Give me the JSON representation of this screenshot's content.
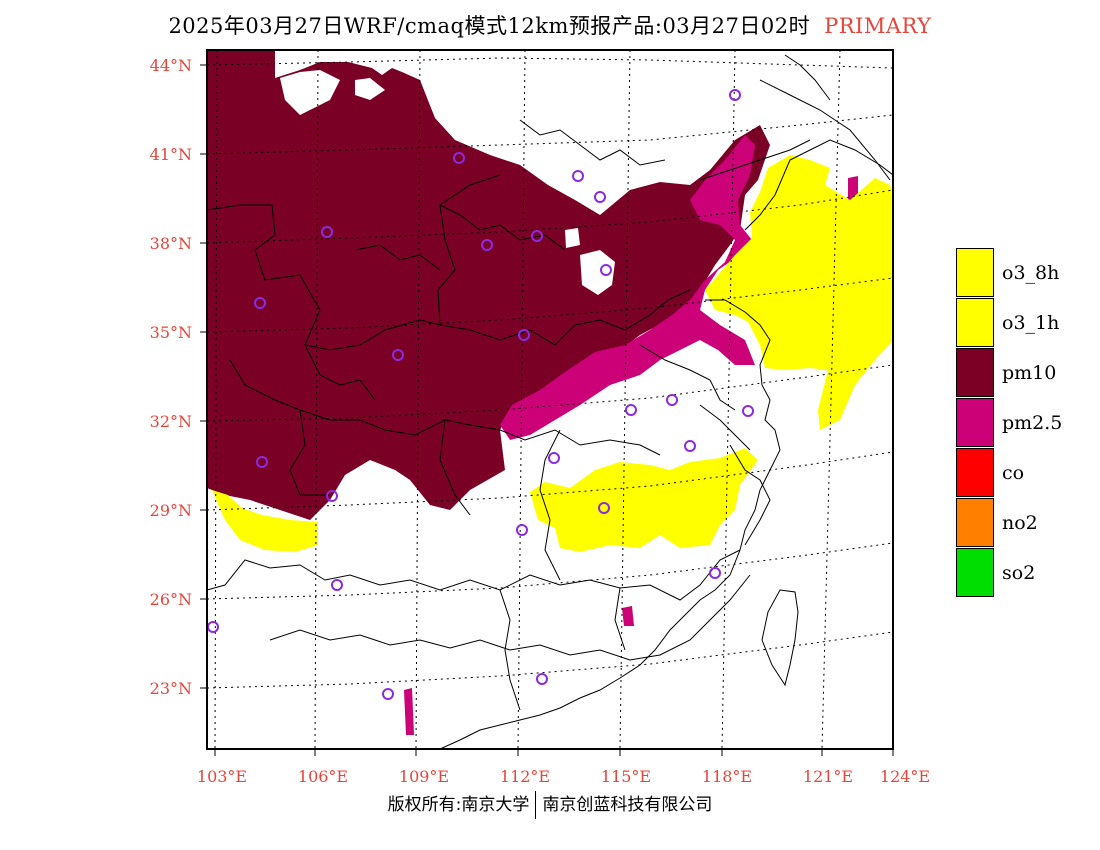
{
  "title": {
    "main": "2025年03月27日WRF/cmaq模式12km预报产品:03月27日02时",
    "tag": "PRIMARY"
  },
  "colors": {
    "pm10": "#7a0026",
    "pm25": "#cc0077",
    "o3": "#ffff00",
    "co": "#ff0000",
    "no2": "#ff7f00",
    "so2": "#00dd00",
    "axis_label": "#e8443a",
    "station_marker": "#8a2be2"
  },
  "axes": {
    "lat_labels": [
      "44°N",
      "41°N",
      "38°N",
      "35°N",
      "32°N",
      "29°N",
      "26°N",
      "23°N"
    ],
    "lon_labels": [
      "103°E",
      "106°E",
      "109°E",
      "112°E",
      "115°E",
      "118°E",
      "121°E",
      "124°E"
    ]
  },
  "legend": [
    {
      "label": "o3_8h",
      "color": "#ffff00"
    },
    {
      "label": "o3_1h",
      "color": "#ffff00"
    },
    {
      "label": "pm10",
      "color": "#7a0026"
    },
    {
      "label": "pm2.5",
      "color": "#cc0077"
    },
    {
      "label": "co",
      "color": "#ff0000"
    },
    {
      "label": "no2",
      "color": "#ff7f00"
    },
    {
      "label": "so2",
      "color": "#00dd00"
    }
  ],
  "footer": {
    "left": "版权所有:南京大学",
    "right": "南京创蓝科技有限公司"
  }
}
